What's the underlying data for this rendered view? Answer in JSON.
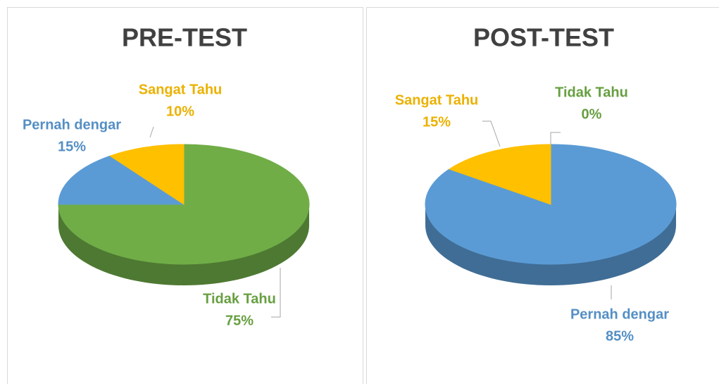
{
  "chart_data": [
    {
      "type": "pie3d",
      "title": "PRE-TEST",
      "categories": [
        "Tidak Tahu",
        "Pernah dengar",
        "Sangat Tahu"
      ],
      "values": [
        75,
        15,
        10
      ],
      "value_labels": [
        "75%",
        "15%",
        "10%"
      ],
      "colors": [
        "#70ad47",
        "#5b9bd5",
        "#ffc000"
      ]
    },
    {
      "type": "pie3d",
      "title": "POST-TEST",
      "categories": [
        "Tidak Tahu",
        "Pernah dengar",
        "Sangat Tahu"
      ],
      "values": [
        0,
        85,
        15
      ],
      "value_labels": [
        "0%",
        "85%",
        "15%"
      ],
      "colors": [
        "#70ad47",
        "#5b9bd5",
        "#ffc000"
      ]
    }
  ]
}
